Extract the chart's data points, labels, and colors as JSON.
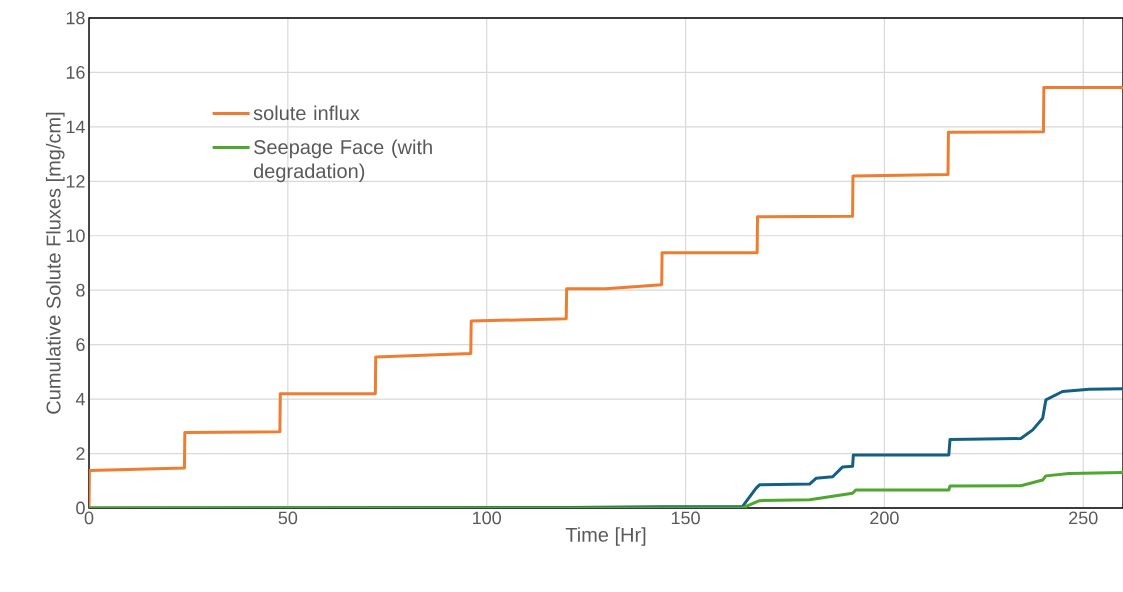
{
  "chart_data": {
    "type": "line",
    "xlabel": "Time [Hr]",
    "ylabel": "Cumulative Solute Fluxes [mg/cm]",
    "xlim": [
      0,
      260
    ],
    "ylim": [
      0,
      18
    ],
    "xticks": [
      0,
      50,
      100,
      150,
      200,
      250
    ],
    "yticks": [
      0,
      2,
      4,
      6,
      8,
      10,
      12,
      14,
      16,
      18
    ],
    "grid": true,
    "legend": "top left",
    "line_style": "solid",
    "marker": "none",
    "series": [
      {
        "name": "solute influx",
        "color": "#ed7d31",
        "x": [
          0,
          0.1,
          24,
          24.1,
          48,
          48.1,
          72,
          72.1,
          96,
          96.1,
          120,
          120.1,
          130,
          144,
          144.1,
          168,
          168.1,
          192,
          192.1,
          216,
          216.1,
          240,
          240.1,
          260
        ],
        "values": [
          0,
          1.38,
          1.47,
          2.77,
          2.8,
          4.2,
          4.2,
          5.55,
          5.68,
          6.87,
          6.95,
          8.05,
          8.05,
          8.2,
          9.38,
          9.38,
          10.7,
          10.72,
          12.2,
          12.25,
          13.8,
          13.82,
          15.45,
          15.45
        ]
      },
      {
        "name": "Seepage Face (with degradation)",
        "color": "#4ea72e",
        "x": [
          0,
          164.3,
          168.6,
          181.2,
          192,
          192.8,
          216.2,
          216.5,
          234.3,
          239.8,
          240.6,
          246.4,
          260
        ],
        "values": [
          0,
          0,
          0.27,
          0.3,
          0.54,
          0.66,
          0.66,
          0.81,
          0.82,
          1.03,
          1.18,
          1.27,
          1.3
        ]
      },
      {
        "color": "#156082",
        "x": [
          0,
          120,
          144,
          164.3,
          167.7,
          168.6,
          181.2,
          182.8,
          187,
          189.5,
          192,
          192.2,
          216.2,
          216.5,
          234.3,
          237.3,
          239.8,
          240.6,
          244.8,
          251.5,
          260
        ],
        "values": [
          0,
          0.02,
          0.05,
          0.05,
          0.72,
          0.85,
          0.88,
          1.09,
          1.15,
          1.51,
          1.53,
          1.95,
          1.95,
          2.52,
          2.55,
          2.87,
          3.3,
          3.97,
          4.28,
          4.36,
          4.38
        ]
      }
    ]
  }
}
